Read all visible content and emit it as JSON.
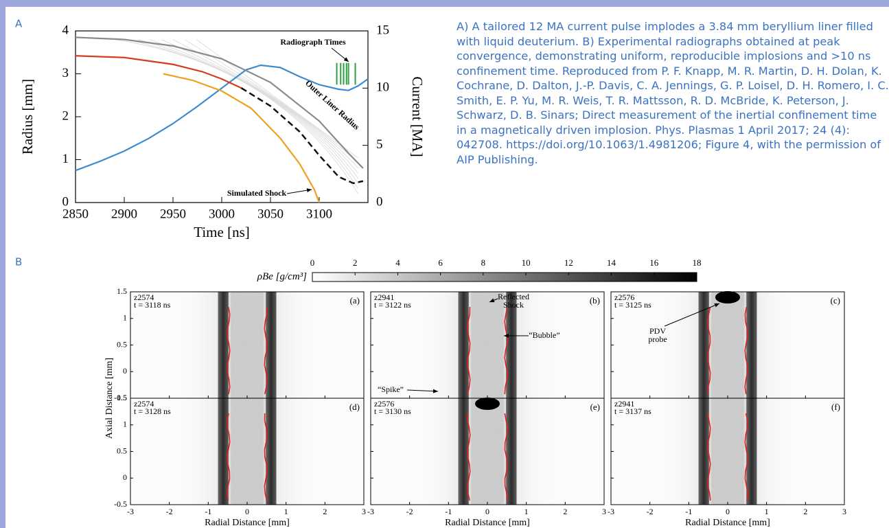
{
  "panel_a": {
    "label": "A",
    "chart_data": {
      "type": "line",
      "xlabel": "Time [ns]",
      "ylabel": "Radius [mm]",
      "y2label": "Current [MA]",
      "xlim": [
        2850,
        3150
      ],
      "xticks": [
        2850,
        2900,
        2950,
        3000,
        3050,
        3100
      ],
      "ylim": [
        0,
        4
      ],
      "yticks": [
        0,
        1,
        2,
        3,
        4
      ],
      "y2lim": [
        0,
        15
      ],
      "y2ticks": [
        0,
        5,
        10,
        15
      ],
      "series": [
        {
          "color": "#3b8bd0",
          "axis": "y2",
          "x": [
            2850,
            2875,
            2900,
            2925,
            2950,
            2975,
            3000,
            3025,
            3040,
            3060,
            3080,
            3100,
            3120,
            3130,
            3140,
            3150
          ],
          "values": [
            2.8,
            3.6,
            4.5,
            5.6,
            6.9,
            8.4,
            10,
            11.6,
            12,
            11.8,
            11,
            10.3,
            9.9,
            9.8,
            10.2,
            10.8
          ]
        },
        {
          "color": "#8a8a8a",
          "x": [
            2850,
            2900,
            2950,
            3000,
            3050,
            3100,
            3130,
            3145
          ],
          "values": [
            3.85,
            3.8,
            3.65,
            3.35,
            2.8,
            1.9,
            1.15,
            0.8
          ]
        },
        {
          "color": "#f0a020",
          "x": [
            2940,
            2970,
            3000,
            3030,
            3060,
            3080,
            3095,
            3100
          ],
          "values": [
            3.0,
            2.85,
            2.6,
            2.2,
            1.5,
            0.9,
            0.3,
            0
          ]
        },
        {
          "color": "#d83a1c",
          "x": [
            2850,
            2900,
            2950,
            2980,
            3000,
            3020
          ],
          "values": [
            3.42,
            3.38,
            3.22,
            3.05,
            2.88,
            2.67
          ]
        },
        {
          "color": "#111111",
          "dashed": true,
          "x": [
            3020,
            3050,
            3080,
            3100,
            3120,
            3135,
            3145
          ],
          "values": [
            2.67,
            2.25,
            1.65,
            1.1,
            0.6,
            0.45,
            0.5
          ]
        }
      ],
      "radiograph_times": {
        "color": "#2ea043",
        "x": [
          3118,
          3122,
          3125,
          3128,
          3130,
          3137
        ],
        "range": [
          10.3,
          12.2
        ]
      },
      "annotations": [
        "Radiograph Times",
        "Outer Liner Radius",
        "Simulated Shock"
      ]
    }
  },
  "caption": "A) A tailored 12 MA current pulse implodes a 3.84 mm beryllium liner filled with liquid deuterium. B) Experimental radiographs obtained at peak convergence, demonstrating uniform, reproducible implosions and >10 ns confinement time. Reproduced from P. F. Knapp, M. R. Martin, D. H. Dolan, K. Cochrane, D. Dalton, J.-P. Davis, C. A. Jennings, G. P. Loisel, D. H. Romero, I. C. Smith, E. P. Yu, M. R. Weis, T. R. Mattsson, R. D. McBride, K. Peterson, J. Schwarz, D. B. Sinars; Direct measurement of the inertial confinement time in a magnetically driven implosion. Phys. Plasmas 1 April 2017; 24 (4): 042708. https://doi.org/10.1063/1.4981206; Figure 4, with the permission of AIP Publishing.",
  "panel_b": {
    "label": "B",
    "colorbar": {
      "label": "ρBe [g/cm³]",
      "lim": [
        0,
        18
      ],
      "ticks": [
        0,
        2,
        4,
        6,
        8,
        10,
        12,
        14,
        16,
        18
      ]
    },
    "xlabel": "Radial Distance [mm]",
    "ylabel": "Axial Distance [mm]",
    "xlim": [
      -3,
      3
    ],
    "xticks": [
      -3,
      -2,
      -1,
      0,
      1,
      2,
      3
    ],
    "ylim": [
      -0.5,
      1.5
    ],
    "yticks": [
      -0.5,
      0,
      0.5,
      1,
      1.5
    ],
    "panels": [
      {
        "letter": "(a)",
        "shot": "z2574",
        "time": "t = 3118 ns"
      },
      {
        "letter": "(b)",
        "shot": "z2941",
        "time": "t = 3122 ns"
      },
      {
        "letter": "(c)",
        "shot": "z2576",
        "time": "t = 3125 ns"
      },
      {
        "letter": "(d)",
        "shot": "z2574",
        "time": "t = 3128 ns"
      },
      {
        "letter": "(e)",
        "shot": "z2576",
        "time": "t = 3130 ns"
      },
      {
        "letter": "(f)",
        "shot": "z2941",
        "time": "t = 3137 ns"
      }
    ],
    "annotations": {
      "reflected_shock": [
        "Reflected",
        "Shock"
      ],
      "bubble": "“Bubble”",
      "spike": "“Spike”",
      "pdv_probe": [
        "PDV",
        "probe"
      ]
    }
  }
}
